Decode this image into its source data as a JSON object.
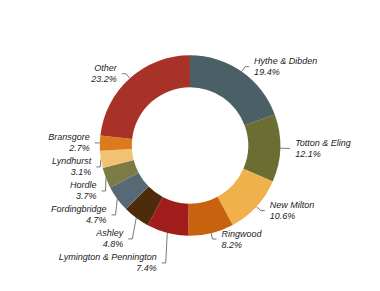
{
  "chart_data": {
    "type": "pie",
    "categories": [
      "Hythe & Dibden",
      "Totton & Eling",
      "New Milton",
      "Ringwood",
      "Lymington & Pennington",
      "Ashley",
      "Fordingbridge",
      "Hordle",
      "Lyndhurst",
      "Bransgore",
      "Other"
    ],
    "values": [
      19.4,
      12.1,
      10.6,
      8.2,
      7.4,
      4.8,
      4.7,
      3.7,
      3.1,
      2.7,
      23.2
    ],
    "value_labels": [
      "19.4%",
      "12.1%",
      "10.6%",
      "8.2%",
      "7.4%",
      "4.8%",
      "4.7%",
      "3.7%",
      "3.1%",
      "2.7%",
      "23.2%"
    ],
    "colors": [
      "#4b5f67",
      "#6b6d33",
      "#f0b14c",
      "#c9620f",
      "#a11d1c",
      "#4d2b0b",
      "#566974",
      "#7d7b45",
      "#f1c274",
      "#dc7a1c",
      "#a83228"
    ],
    "data_labels": true
  }
}
